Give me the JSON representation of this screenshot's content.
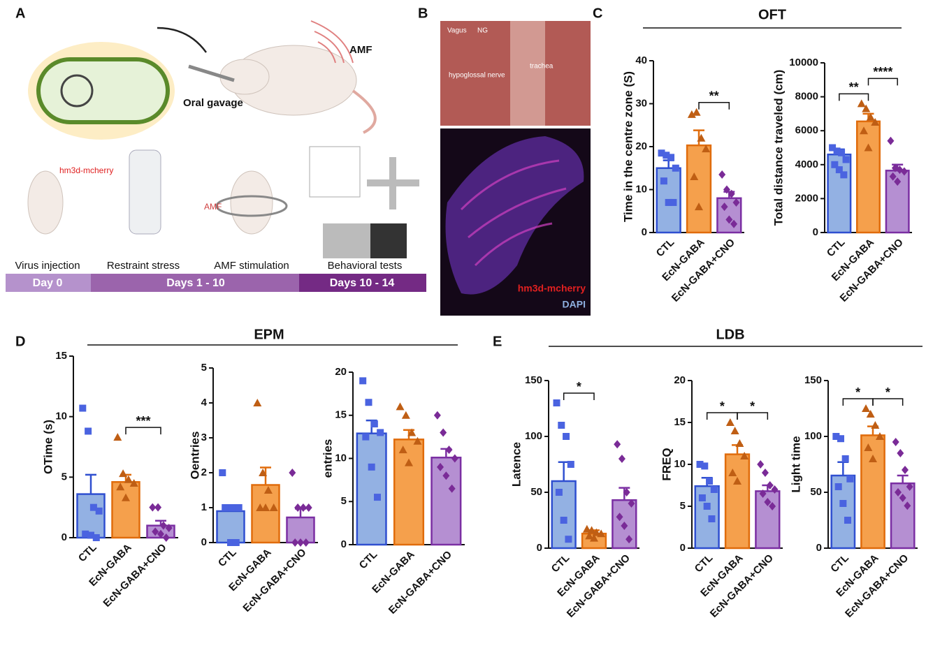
{
  "panel_labels": [
    "A",
    "B",
    "C",
    "D",
    "E"
  ],
  "group_titles": [
    "OFT",
    "EPM",
    "LDB"
  ],
  "schematic": {
    "amf": "AMF",
    "gavage": "Oral gavage",
    "construct": "hm3d-mcherry",
    "amf_device": "AMF",
    "steps": [
      "Virus injection",
      "Restraint stress",
      "AMF stimulation",
      "Behavioral tests"
    ],
    "timeline": [
      "Day 0",
      "Days 1 - 10",
      "Days 10 - 14"
    ]
  },
  "micrograph": {
    "labels": [
      "Vagus",
      "NG",
      "trachea",
      "hypoglossal nerve"
    ],
    "channels": [
      "hm3d-mcherry",
      "DAPI"
    ]
  },
  "style": {
    "fills": [
      "#93b1e3",
      "#f5a04c",
      "#b58fd2"
    ],
    "edges": [
      "#2f4fd0",
      "#e06c0c",
      "#7b2fa3"
    ],
    "point_colors": [
      "#4a63e0",
      "#bf5e14",
      "#7a2b97"
    ],
    "markers": [
      "square",
      "triangle",
      "diamond"
    ]
  },
  "chart_data": [
    {
      "type": "bar",
      "ylabel": "Time in the centre zone (S)",
      "categories": [
        "CTL",
        "EcN-GABA",
        "EcN-GABA+CNO"
      ],
      "values": [
        15,
        20.3,
        8
      ],
      "errors": [
        1.8,
        3.5,
        1.5
      ],
      "points": [
        [
          18.5,
          18,
          17.5,
          15,
          12,
          7,
          7
        ],
        [
          27.5,
          28,
          22,
          19.5,
          13,
          6
        ],
        [
          13.5,
          10,
          9,
          7,
          6,
          3,
          2
        ]
      ],
      "ylim": [
        0,
        40
      ],
      "yticks": [
        0,
        10,
        20,
        30,
        40
      ],
      "annotations": [
        {
          "text": "**",
          "from": 1,
          "to": 2
        }
      ]
    },
    {
      "type": "bar",
      "ylabel": "Total distance traveled (cm)",
      "categories": [
        "CTL",
        "EcN-GABA",
        "EcN-GABA+CNO"
      ],
      "values": [
        4600,
        6550,
        3650
      ],
      "errors": [
        300,
        450,
        350
      ],
      "points": [
        [
          5000,
          4800,
          4700,
          4300,
          4000,
          3700,
          3400
        ],
        [
          7600,
          7300,
          6800,
          6500,
          6000,
          5000
        ],
        [
          5400,
          3800,
          3700,
          3600,
          3300,
          3000
        ]
      ],
      "ylim": [
        0,
        10000
      ],
      "yticks": [
        0,
        2000,
        4000,
        6000,
        8000,
        10000
      ],
      "annotations": [
        {
          "text": "**",
          "from": 0,
          "to": 1
        },
        {
          "text": "****",
          "from": 1,
          "to": 2
        }
      ]
    },
    {
      "type": "bar",
      "ylabel": "OTime  (s)",
      "categories": [
        "CTL",
        "EcN-GABA",
        "EcN-GABA+CNO"
      ],
      "values": [
        3.6,
        4.6,
        1.0
      ],
      "errors": [
        1.6,
        0.6,
        0.4
      ],
      "points": [
        [
          10.7,
          8.8,
          2.5,
          2.2,
          0.3,
          0.2,
          0
        ],
        [
          8.3,
          5.3,
          4.8,
          4.5,
          4.2,
          3.3
        ],
        [
          2.5,
          2.5,
          1.0,
          0.8,
          0.5,
          0.3,
          0
        ]
      ],
      "ylim": [
        0,
        15
      ],
      "yticks": [
        0,
        5,
        10,
        15
      ],
      "annotations": [
        {
          "text": "***",
          "from": 1,
          "to": 2
        }
      ]
    },
    {
      "type": "bar",
      "ylabel": "Oentries",
      "categories": [
        "CTL",
        "EcN-GABA",
        "EcN-GABA+CNO"
      ],
      "values": [
        0.9,
        1.65,
        0.72
      ],
      "errors": [
        0.15,
        0.5,
        0.25
      ],
      "points": [
        [
          2,
          1,
          1,
          1,
          1,
          0,
          0
        ],
        [
          4,
          2,
          1.5,
          1,
          1,
          1
        ],
        [
          2,
          1,
          1,
          1,
          0,
          0,
          0
        ]
      ],
      "ylim": [
        0,
        5
      ],
      "yticks": [
        0,
        1,
        2,
        3,
        4,
        5
      ],
      "annotations": []
    },
    {
      "type": "bar",
      "ylabel": "entries",
      "categories": [
        "CTL",
        "EcN-GABA",
        "EcN-GABA+CNO"
      ],
      "values": [
        12.9,
        12.2,
        10.1
      ],
      "errors": [
        1.5,
        1.1,
        1.0
      ],
      "points": [
        [
          19,
          16.5,
          14,
          13,
          12.5,
          9,
          5.5
        ],
        [
          16,
          15,
          13,
          12,
          11,
          9.5
        ],
        [
          15,
          13,
          11,
          10,
          9,
          8,
          6.5
        ]
      ],
      "ylim": [
        0,
        20
      ],
      "yticks": [
        0,
        5,
        10,
        15,
        20
      ],
      "annotations": []
    },
    {
      "type": "bar",
      "ylabel": "Latence",
      "categories": [
        "CTL",
        "EcN-GABA",
        "EcN-GABA+CNO"
      ],
      "values": [
        60,
        13,
        43
      ],
      "errors": [
        17,
        3,
        11
      ],
      "points": [
        [
          130,
          110,
          100,
          75,
          50,
          25,
          8
        ],
        [
          17,
          16,
          14,
          13,
          11,
          9
        ],
        [
          93,
          80,
          50,
          40,
          28,
          20,
          8
        ]
      ],
      "ylim": [
        0,
        150
      ],
      "yticks": [
        0,
        50,
        100,
        150
      ],
      "annotations": [
        {
          "text": "*",
          "from": 0,
          "to": 1
        }
      ]
    },
    {
      "type": "bar",
      "ylabel": "FREQ",
      "categories": [
        "CTL",
        "EcN-GABA",
        "EcN-GABA+CNO"
      ],
      "values": [
        7.4,
        11.2,
        6.8
      ],
      "errors": [
        1.0,
        1.1,
        0.7
      ],
      "points": [
        [
          10,
          9.8,
          8,
          7,
          6,
          5,
          3.5
        ],
        [
          15,
          14,
          12.5,
          11,
          9,
          8
        ],
        [
          10,
          9,
          7.5,
          7,
          6.5,
          5.5,
          5
        ]
      ],
      "ylim": [
        0,
        20
      ],
      "yticks": [
        0,
        5,
        10,
        15,
        20
      ],
      "annotations": [
        {
          "text": "*",
          "from": 0,
          "to": 1
        },
        {
          "text": "*",
          "from": 1,
          "to": 2
        }
      ]
    },
    {
      "type": "bar",
      "ylabel": "Light time",
      "categories": [
        "CTL",
        "EcN-GABA",
        "EcN-GABA+CNO"
      ],
      "values": [
        65,
        101,
        58
      ],
      "errors": [
        12,
        8,
        7
      ],
      "points": [
        [
          100,
          98,
          80,
          62,
          55,
          40,
          25
        ],
        [
          125,
          120,
          110,
          100,
          90,
          80
        ],
        [
          95,
          85,
          70,
          55,
          50,
          45,
          38
        ]
      ],
      "ylim": [
        0,
        150
      ],
      "yticks": [
        0,
        50,
        100,
        150
      ],
      "annotations": [
        {
          "text": "*",
          "from": 0,
          "to": 1
        },
        {
          "text": "*",
          "from": 1,
          "to": 2
        }
      ]
    }
  ]
}
